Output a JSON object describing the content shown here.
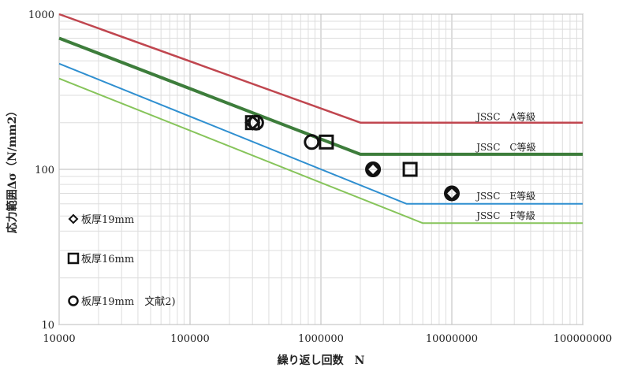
{
  "chart_data": {
    "type": "line",
    "x_scale": "log",
    "y_scale": "log",
    "xlim": [
      10000,
      100000000
    ],
    "ylim": [
      10,
      1000
    ],
    "x_ticks": [
      "10000",
      "100000",
      "1000000",
      "10000000",
      "100000000"
    ],
    "y_ticks": [
      "10",
      "100",
      "1000"
    ],
    "xlabel": "繰り返し回数　N",
    "ylabel": "応力範囲Δσ（N/mm2）",
    "grid": true,
    "series": [
      {
        "name": "JSSC　A等級",
        "color": "#c0464f",
        "width": 2.5,
        "points": [
          [
            10000,
            1010
          ],
          [
            2000000,
            200
          ],
          [
            100000000,
            200
          ]
        ]
      },
      {
        "name": "JSSC　C等級",
        "color": "#3d7d3b",
        "width": 4,
        "points": [
          [
            10000,
            700
          ],
          [
            2000000,
            125
          ],
          [
            100000000,
            125
          ]
        ]
      },
      {
        "name": "",
        "color": "#2f8fd0",
        "width": 2,
        "points": [
          [
            10000,
            480
          ],
          [
            4500000,
            60
          ],
          [
            100000000,
            60
          ]
        ]
      },
      {
        "name": "",
        "color": "#86c45a",
        "width": 2,
        "points": [
          [
            10000,
            385
          ],
          [
            6000000,
            45
          ],
          [
            100000000,
            45
          ]
        ]
      }
    ],
    "curve_labels": [
      {
        "text": "JSSC　A等級",
        "x": 30000000,
        "y": 208
      },
      {
        "text": "JSSC　C等級",
        "x": 30000000,
        "y": 132
      },
      {
        "text": "JSSC　E等級",
        "x": 30000000,
        "y": 64
      },
      {
        "text": "JSSC　F等級",
        "x": 30000000,
        "y": 48
      }
    ],
    "markers": [
      {
        "group": "板厚19mm",
        "shape": "diamond",
        "x": 300000,
        "y": 200
      },
      {
        "group": "板厚19mm",
        "shape": "diamond",
        "x": 2500000,
        "y": 100
      },
      {
        "group": "板厚19mm",
        "shape": "diamond",
        "x": 10000000,
        "y": 70
      },
      {
        "group": "板厚16mm",
        "shape": "square",
        "x": 300000,
        "y": 200
      },
      {
        "group": "板厚16mm",
        "shape": "square",
        "x": 1100000,
        "y": 150
      },
      {
        "group": "板厚16mm",
        "shape": "square",
        "x": 4800000,
        "y": 100
      },
      {
        "group": "板厚19mm　文献2)",
        "shape": "circle",
        "x": 320000,
        "y": 200
      },
      {
        "group": "板厚19mm　文献2)",
        "shape": "circle",
        "x": 850000,
        "y": 150
      },
      {
        "group": "板厚19mm　文献2)",
        "shape": "circle",
        "x": 2500000,
        "y": 100
      },
      {
        "group": "板厚19mm　文献2)",
        "shape": "circle",
        "x": 10000000,
        "y": 70
      }
    ],
    "legend": {
      "placement": "bottom-left",
      "items": [
        {
          "shape": "diamond",
          "label": "板厚19mm"
        },
        {
          "shape": "square",
          "label": "板厚16mm"
        },
        {
          "shape": "circle",
          "label": "板厚19mm　文献2)"
        }
      ]
    }
  }
}
